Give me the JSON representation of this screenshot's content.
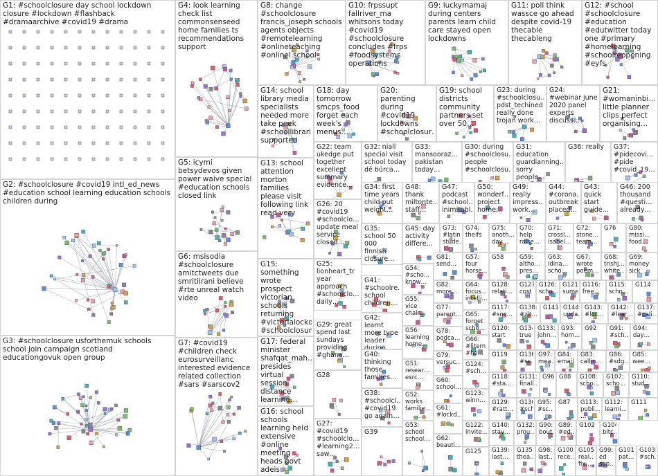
{
  "groups": [
    {
      "id": "G1",
      "label": "G1: #schoolclosure day school lockdown closure #lockdown #flashback #dramaarchive #covid19 #drama"
    },
    {
      "id": "G2",
      "label": "G2: #schoolclosure #covid19 intl_ed_news #education school learning education schools children during"
    },
    {
      "id": "G3",
      "label": "G3: #schoolclosure usforthemuk schools school join campaign scotland educationgovuk open group"
    },
    {
      "id": "G4",
      "label": "G4: look learning check list commonsenseed home families ts recommendations support"
    },
    {
      "id": "G5",
      "label": "G5: icymi betsydevos given power waive special #education schools closed link"
    },
    {
      "id": "G6",
      "label": "G6: msisodia #schoolclosure amitctweets due smritiirani believe #rte unreal watch video"
    },
    {
      "id": "G7",
      "label": "G7: #covid19 #children check eurosurveillanc interested evidence related collection #sars #sarscov2"
    },
    {
      "id": "G8",
      "label": "G8: change #schoolclosure francis_joseph schools agents objects #remotelearning #onlineteaching #onlinel school"
    },
    {
      "id": "G10",
      "label": "G10: frpssupt fallriver_ma whitsons today #covid19 #schoolclosure concludes #frps #foodsystems operations"
    },
    {
      "id": "G9",
      "label": "G9: luckymamaj during centers parents learn child care stayed open lockdowns"
    },
    {
      "id": "G11",
      "label": "G11: poll think wassce go ahead despite covid-19 thecable thecableng"
    },
    {
      "id": "G12",
      "label": "G12: #school #schoolclosure #education #edutwitter today one #primary #homelearning #schoolreopening #eyfs"
    },
    {
      "id": "G14",
      "label": "G14: school library media specialists needed more take peek #schoollibrari… supported"
    },
    {
      "id": "G18",
      "label": "G18: day tomorrow smcps_food forget each week's menus…"
    },
    {
      "id": "G20",
      "label": "G20: parenting during #covid19 lockdowns #schoolclosur…"
    },
    {
      "id": "G19",
      "label": "G19: school districts community partners set over 50…"
    },
    {
      "id": "G23",
      "label": "G23: during #schoolclosu… pdst_techined really done trojan work…"
    },
    {
      "id": "G24",
      "label": "G24: #webinar june 2020 panel experts discuss…"
    },
    {
      "id": "G21",
      "label": "G21: #womaninbi… little planner clips perfect organising…"
    },
    {
      "id": "G13",
      "label": "G13: school attention morton families please visit following link read very"
    },
    {
      "id": "G22",
      "label": "G22: team ukedge put together excellent summary evidence…"
    },
    {
      "id": "G32",
      "label": "G32: niall special visit school today dé búrca…"
    },
    {
      "id": "G33",
      "label": "G33: mansooraz… pakistan today…"
    },
    {
      "id": "G30",
      "label": "G30: during #schoolclosu… people #schoolclosu…"
    },
    {
      "id": "G31",
      "label": "G31: education guardianning… sorry people…"
    },
    {
      "id": "G36",
      "label": "G36: really"
    },
    {
      "id": "G37",
      "label": "G37: #pidecovi… #pide #covid_19…"
    },
    {
      "id": "G26",
      "label": "G26: 20 #covid19 #schoolclo… update meal service closed…"
    },
    {
      "id": "G34",
      "label": "G34: first time years child put weight…"
    },
    {
      "id": "G48",
      "label": "G48: thank miltonte… staff…"
    },
    {
      "id": "G47",
      "label": "G47: podcast #school… inimitabl…"
    },
    {
      "id": "G50",
      "label": "G50: wonderf… project home…"
    },
    {
      "id": "G49",
      "label": "G49: really impress… work…"
    },
    {
      "id": "G44",
      "label": "G44: #corona… outbreak placed…"
    },
    {
      "id": "G43",
      "label": "G43: quick start guide…"
    },
    {
      "id": "G46",
      "label": "G46: 200 thousand #questi… already…"
    },
    {
      "id": "G15",
      "label": "G15: something wrote prospect victorian schools returning #victorialockd… #schoolclosur…"
    },
    {
      "id": "G35",
      "label": "G35: school 50 000 finnish closure…"
    },
    {
      "id": "G45",
      "label": "G45: day activity differe…"
    },
    {
      "id": "G73",
      "label": "G73: #latinx stude…"
    },
    {
      "id": "G74",
      "label": "G74: theifs"
    },
    {
      "id": "G75",
      "label": "G75: anoth… day…"
    },
    {
      "id": "G70",
      "label": "G70: help raise…"
    },
    {
      "id": "G71",
      "label": "G71: crossl… isabel…"
    },
    {
      "id": "G72",
      "label": "G72: stone… team…"
    },
    {
      "id": "G76",
      "label": "G76"
    },
    {
      "id": "G80",
      "label": "G80: missi… food…"
    },
    {
      "id": "G25",
      "label": "G25: lionheart_tr year approach #schoolclo… daily…"
    },
    {
      "id": "G81",
      "label": "G81: send…"
    },
    {
      "id": "G57",
      "label": "G57: four horse…"
    },
    {
      "id": "G58",
      "label": "G58"
    },
    {
      "id": "G59",
      "label": "G59: altho… pres…"
    },
    {
      "id": "G63",
      "label": "G63: idina… scho…"
    },
    {
      "id": "G67",
      "label": "G67: wrote poem…"
    },
    {
      "id": "G68",
      "label": "G68: trishj… white…"
    },
    {
      "id": "G69",
      "label": "G69: money sick"
    },
    {
      "id": "G41",
      "label": "G41: #schoolre… school children…"
    },
    {
      "id": "G54",
      "label": "G54: #scho… know…"
    },
    {
      "id": "G82",
      "label": "G82: more…"
    },
    {
      "id": "G64",
      "label": "G64: focus… intelli…"
    },
    {
      "id": "G128",
      "label": "G128: relati…"
    },
    {
      "id": "G127",
      "label": "G127: cost"
    },
    {
      "id": "G126",
      "label": "G126: scho…"
    },
    {
      "id": "G121",
      "label": "G121: sume…"
    },
    {
      "id": "G116",
      "label": "G116: free…"
    },
    {
      "id": "G115",
      "label": "G115: scho…"
    },
    {
      "id": "G114",
      "label": "G114"
    },
    {
      "id": "G29",
      "label": "G29: great spend last sundays providing #ghana…"
    },
    {
      "id": "G17",
      "label": "G17: federal minister shafqat_mah… presides virtual session distance learning…"
    },
    {
      "id": "G55",
      "label": "G55: vice chair…"
    },
    {
      "id": "G77",
      "label": "G77: parent…"
    },
    {
      "id": "G65",
      "label": "G65: forget scho…"
    },
    {
      "id": "G117",
      "label": "G117: #soc…"
    },
    {
      "id": "G138",
      "label": "G138: #zlt…"
    },
    {
      "id": "G141",
      "label": "G141"
    },
    {
      "id": "G144",
      "label": "G144: upda…"
    },
    {
      "id": "G143",
      "label": "G143: #loc…"
    },
    {
      "id": "G142",
      "label": "G142: #lear…"
    },
    {
      "id": "G137",
      "label": "G137: #cali…"
    },
    {
      "id": "G42",
      "label": "G42: learnt more type leader during…"
    },
    {
      "id": "G56",
      "label": "G56: learning home…"
    },
    {
      "id": "G78",
      "label": "G78: podca…"
    },
    {
      "id": "G120",
      "label": "G120: start"
    },
    {
      "id": "G134",
      "label": "G134: true"
    },
    {
      "id": "G133",
      "label": "G133: john…"
    },
    {
      "id": "G93",
      "label": "G93: hom…"
    },
    {
      "id": "G92",
      "label": "G92"
    },
    {
      "id": "G91",
      "label": "G91: #sch…"
    },
    {
      "id": "G94",
      "label": "G94: day…"
    },
    {
      "id": "G28",
      "label": "G28"
    },
    {
      "id": "G40",
      "label": "G40: thinking those families…"
    },
    {
      "id": "G66",
      "label": "G66: #litern #ho…"
    },
    {
      "id": "G79",
      "label": "G79: versuc…"
    },
    {
      "id": "G119",
      "label": "G119"
    },
    {
      "id": "G136",
      "label": "G136: #sc…"
    },
    {
      "id": "G97",
      "label": "G97: mea…"
    },
    {
      "id": "G84",
      "label": "G84: email"
    },
    {
      "id": "G83",
      "label": "G83: callin…"
    },
    {
      "id": "G86",
      "label": "G86: #sdg…"
    },
    {
      "id": "G85",
      "label": "G85: wee…"
    },
    {
      "id": "G16",
      "label": "G16: school schools learning held extensive #online meeting heads govt adeis"
    },
    {
      "id": "G51",
      "label": "G51: resear… esrc…"
    },
    {
      "id": "G60",
      "label": "G60: school…"
    },
    {
      "id": "G118",
      "label": "G118: #sta…"
    },
    {
      "id": "G124",
      "label": "G124: #sch…"
    },
    {
      "id": "G131",
      "label": "G131: finall…"
    },
    {
      "id": "G96",
      "label": "G96"
    },
    {
      "id": "G88",
      "label": "G88"
    },
    {
      "id": "G108",
      "label": "G108: scho…"
    },
    {
      "id": "G107",
      "label": "G107: scho…"
    },
    {
      "id": "G110",
      "label": "G110: stud…"
    },
    {
      "id": "G38",
      "label": "G38: #schoolcl… #covid19 go again…"
    },
    {
      "id": "G52",
      "label": "G52: works familie…"
    },
    {
      "id": "G129",
      "label": "G129: #ratt…"
    },
    {
      "id": "G130",
      "label": "G130: #sch…"
    },
    {
      "id": "G95",
      "label": "G95: #sc…"
    },
    {
      "id": "G87",
      "label": "G87"
    },
    {
      "id": "G113",
      "label": "G113: publi… …"
    },
    {
      "id": "G112",
      "label": "G112: learni…"
    },
    {
      "id": "G111",
      "label": "G111"
    },
    {
      "id": "G27",
      "label": "G27: #covid19 #schoolclo… #learning2… saw…"
    },
    {
      "id": "G39",
      "label": "G39"
    },
    {
      "id": "G61",
      "label": "G61: #lockd…"
    },
    {
      "id": "G123",
      "label": "G123: winn…"
    },
    {
      "id": "G122",
      "label": "G122: invite…"
    },
    {
      "id": "G140",
      "label": "G140: stay…"
    },
    {
      "id": "G132",
      "label": "G132: prou…"
    },
    {
      "id": "G90",
      "label": "G90: bout…"
    },
    {
      "id": "G89",
      "label": "G89: #ed…"
    },
    {
      "id": "G102",
      "label": "G102"
    },
    {
      "id": "G104",
      "label": "G104: bitc…"
    },
    {
      "id": "G53",
      "label": "G53: school school…"
    },
    {
      "id": "G62",
      "label": "G62: beauti…"
    },
    {
      "id": "G125",
      "label": "G125"
    },
    {
      "id": "G139",
      "label": "G139: last…"
    },
    {
      "id": "G135",
      "label": "G135: thea…"
    },
    {
      "id": "G98",
      "label": "G98: last…"
    },
    {
      "id": "G100",
      "label": "G100: rece…"
    },
    {
      "id": "G105",
      "label": "G105: real… fix…"
    },
    {
      "id": "G99",
      "label": "G99: ed sup…"
    },
    {
      "id": "G101",
      "label": "G101: pat…"
    },
    {
      "id": "G103",
      "label": "G103: #sch…"
    }
  ]
}
